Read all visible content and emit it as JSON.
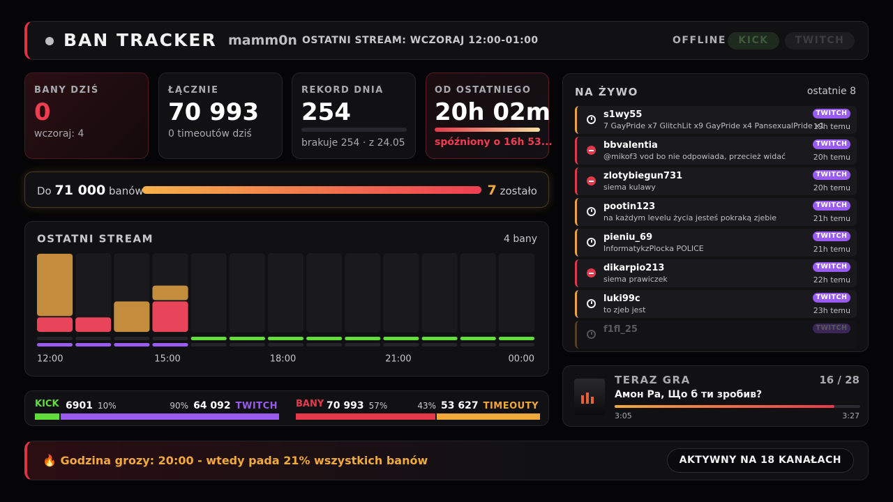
{
  "header": {
    "title": "BAN TRACKER",
    "channel": "mamm0n",
    "last_stream": "OSTATNI STREAM: WCZORAJ 12:00-01:00",
    "status": "OFFLINE",
    "platforms": [
      "KICK",
      "TWITCH"
    ]
  },
  "stats": [
    {
      "label": "BANY DZIŚ",
      "value": 0,
      "note": "wczoraj: 4"
    },
    {
      "label": "ŁĄCZNIE",
      "value": "70 993",
      "note": "0 timeoutów dziś"
    },
    {
      "label": "REKORD DNIA",
      "value": 254,
      "note": "brakuje 254 · z 24.05"
    },
    {
      "label": "OD OSTATNIEGO",
      "value": "20h 02m",
      "note": "spóźniony o 16h 53..."
    }
  ],
  "goal": {
    "prefix": "Do",
    "target": {
      "value": 71000,
      "label": "71 000"
    },
    "unit": "banów",
    "remaining": 7,
    "remaining_label": "zostało"
  },
  "chart_data": {
    "type": "bar",
    "title": "OSTATNI STREAM",
    "summary": "4 bany",
    "categories": [
      "12:00",
      null,
      null,
      "15:00",
      null,
      null,
      "18:00",
      null,
      null,
      "21:00",
      null,
      null,
      "00:00"
    ],
    "series": [
      {
        "color": "#e9455a",
        "values": [
          1,
          1,
          0,
          2,
          0,
          0,
          0,
          0,
          0,
          0,
          0,
          0,
          0
        ]
      },
      {
        "color": "#c48d3e",
        "values": [
          4,
          0,
          2,
          1,
          0,
          0,
          0,
          0,
          0,
          0,
          0,
          0,
          0
        ]
      }
    ],
    "ylim": [
      0,
      5
    ],
    "activity": [
      {
        "color": "#62de3a",
        "values": [
          0,
          0,
          0,
          0,
          1,
          1,
          1,
          1,
          1,
          1,
          1,
          1,
          1
        ]
      },
      {
        "color": "#9a5cf0",
        "values": [
          1,
          1,
          1,
          1,
          0,
          0,
          0,
          0,
          0,
          0,
          0,
          0,
          0
        ]
      }
    ]
  },
  "split": [
    {
      "left": {
        "name": "KICK",
        "count": 6901,
        "pct": {
          "value": 10,
          "label": "10%"
        },
        "color": "#62de3a"
      },
      "right": {
        "name": "TWITCH",
        "count": {
          "value": 64092,
          "label": "64 092"
        },
        "pct": {
          "value": 90,
          "label": "90%"
        },
        "color": "#9a5cf0"
      }
    },
    {
      "left": {
        "name": "BANY",
        "count": {
          "value": 70993,
          "label": "70 993"
        },
        "pct": {
          "value": 57,
          "label": "57%"
        },
        "color": "#e8394c"
      },
      "right": {
        "name": "TIMEOUTY",
        "count": {
          "value": 53627,
          "label": "53 627"
        },
        "pct": {
          "value": 43,
          "label": "43%"
        },
        "color": "#f2a93c"
      }
    }
  ],
  "feed": {
    "title": "NA ŻYWO",
    "subtitle": "ostatnie 8",
    "items": [
      {
        "user": "s1wy55",
        "message": "7 GayPride x7 GlitchLit x9 GayPride x4 PansexualPride x1",
        "platform": "TWITCH",
        "time": "19h temu",
        "kind": "timeout"
      },
      {
        "user": "bbvalentia",
        "message": "@mikof3 vod bo nie odpowiada, przecież widać",
        "platform": "TWITCH",
        "time": "20h temu",
        "kind": "ban"
      },
      {
        "user": "zlotybiegun731",
        "message": "siema kulawy",
        "platform": "TWITCH",
        "time": "20h temu",
        "kind": "ban"
      },
      {
        "user": "pootin123",
        "message": "na każdym levelu życia jesteś pokraką zjebie",
        "platform": "TWITCH",
        "time": "21h temu",
        "kind": "timeout"
      },
      {
        "user": "pieniu_69",
        "message": "InformatykzPlocka POLICE",
        "platform": "TWITCH",
        "time": "21h temu",
        "kind": "timeout"
      },
      {
        "user": "dikarpio213",
        "message": "siema prawiczek",
        "platform": "TWITCH",
        "time": "22h temu",
        "kind": "ban"
      },
      {
        "user": "luki99c",
        "message": "to zjeb jest",
        "platform": "TWITCH",
        "time": "23h temu",
        "kind": "timeout"
      },
      {
        "user": "f1fl_25",
        "message": "",
        "platform": "TWITCH",
        "time": "",
        "kind": "timeout"
      }
    ]
  },
  "now_playing": {
    "title": "TERAZ GRA",
    "position": "16 / 28",
    "track": "Амон Ра, Що б ти зробив?",
    "elapsed": {
      "value": 185,
      "label": "3:05"
    },
    "duration": {
      "value": 207,
      "label": "3:27"
    }
  },
  "footer": {
    "fact": "🔥 Godzina grozy: 20:00 - wtedy pada 21% wszystkich banów",
    "channels": "AKTYWNY NA 18 KANAŁACH"
  }
}
